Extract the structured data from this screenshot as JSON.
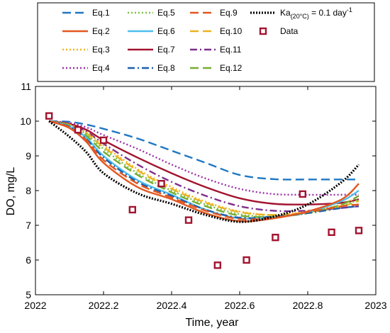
{
  "chart_data": {
    "type": "line",
    "xlabel": "Time, year",
    "ylabel": "DO, mg/L",
    "xlim": [
      2022,
      2023
    ],
    "ylim": [
      5,
      11
    ],
    "xticks": [
      2022,
      2022.2,
      2022.4,
      2022.6,
      2022.8,
      2023
    ],
    "xtick_labels": [
      "2022",
      "2022.2",
      "2022.4",
      "2022.6",
      "2022.8",
      "2023"
    ],
    "yticks": [
      5,
      6,
      7,
      8,
      9,
      10,
      11
    ],
    "ytick_labels": [
      "5",
      "6",
      "7",
      "8",
      "9",
      "10",
      "11"
    ],
    "grid": false,
    "legend_position": "top",
    "series": [
      {
        "name": "Eq.1",
        "color": "#1f77c4",
        "dash": "long-dash",
        "x": [
          2022.04,
          2022.1,
          2022.15,
          2022.2,
          2022.3,
          2022.4,
          2022.5,
          2022.6,
          2022.7,
          2022.8,
          2022.9,
          2022.95
        ],
        "y": [
          10.0,
          9.98,
          9.9,
          9.78,
          9.5,
          9.15,
          8.8,
          8.45,
          8.33,
          8.32,
          8.32,
          8.32
        ]
      },
      {
        "name": "Eq.2",
        "color": "#e2571f",
        "dash": "solid",
        "x": [
          2022.04,
          2022.1,
          2022.15,
          2022.2,
          2022.3,
          2022.4,
          2022.5,
          2022.6,
          2022.7,
          2022.8,
          2022.9,
          2022.95
        ],
        "y": [
          10.0,
          9.8,
          9.4,
          8.8,
          8.1,
          7.75,
          7.35,
          7.12,
          7.2,
          7.4,
          7.75,
          8.2
        ]
      },
      {
        "name": "Eq.3",
        "color": "#f2b51f",
        "dash": "dotted",
        "x": [
          2022.04,
          2022.1,
          2022.15,
          2022.2,
          2022.3,
          2022.4,
          2022.5,
          2022.6,
          2022.7,
          2022.8,
          2022.9,
          2022.95
        ],
        "y": [
          10.0,
          9.9,
          9.68,
          9.3,
          8.62,
          8.1,
          7.68,
          7.4,
          7.3,
          7.4,
          7.6,
          7.85
        ]
      },
      {
        "name": "Eq.4",
        "color": "#9b2fa5",
        "dash": "dotted",
        "x": [
          2022.04,
          2022.1,
          2022.15,
          2022.2,
          2022.3,
          2022.4,
          2022.5,
          2022.6,
          2022.7,
          2022.8,
          2022.9,
          2022.95
        ],
        "y": [
          10.0,
          9.95,
          9.82,
          9.6,
          9.2,
          8.75,
          8.35,
          8.05,
          7.9,
          7.88,
          7.88,
          7.88
        ]
      },
      {
        "name": "Eq.5",
        "color": "#7cc242",
        "dash": "dotted",
        "x": [
          2022.04,
          2022.1,
          2022.15,
          2022.2,
          2022.3,
          2022.4,
          2022.5,
          2022.6,
          2022.7,
          2022.8,
          2022.9,
          2022.95
        ],
        "y": [
          10.0,
          9.88,
          9.62,
          9.2,
          8.5,
          8.0,
          7.6,
          7.32,
          7.25,
          7.35,
          7.55,
          7.75
        ]
      },
      {
        "name": "Eq.6",
        "color": "#4dbeee",
        "dash": "solid",
        "x": [
          2022.04,
          2022.1,
          2022.15,
          2022.2,
          2022.3,
          2022.4,
          2022.5,
          2022.6,
          2022.7,
          2022.8,
          2022.9,
          2022.95
        ],
        "y": [
          10.0,
          9.85,
          9.52,
          9.0,
          8.3,
          7.88,
          7.45,
          7.2,
          7.22,
          7.38,
          7.7,
          8.0
        ]
      },
      {
        "name": "Eq.7",
        "color": "#a2142f",
        "dash": "solid",
        "x": [
          2022.04,
          2022.1,
          2022.15,
          2022.2,
          2022.3,
          2022.4,
          2022.5,
          2022.6,
          2022.7,
          2022.8,
          2022.9,
          2022.95
        ],
        "y": [
          10.0,
          9.92,
          9.75,
          9.45,
          8.95,
          8.5,
          8.1,
          7.78,
          7.62,
          7.6,
          7.65,
          7.75
        ]
      },
      {
        "name": "Eq.8",
        "color": "#1f5faa",
        "dash": "dash-dot",
        "x": [
          2022.04,
          2022.1,
          2022.15,
          2022.2,
          2022.3,
          2022.4,
          2022.5,
          2022.6,
          2022.7,
          2022.8,
          2022.9,
          2022.95
        ],
        "y": [
          10.0,
          9.84,
          9.48,
          8.95,
          8.25,
          7.85,
          7.45,
          7.22,
          7.25,
          7.35,
          7.5,
          7.55
        ]
      },
      {
        "name": "Eq.9",
        "color": "#e2571f",
        "dash": "long-dash",
        "x": [
          2022.04,
          2022.1,
          2022.15,
          2022.2,
          2022.3,
          2022.4,
          2022.5,
          2022.6,
          2022.7,
          2022.8,
          2022.9,
          2022.95
        ],
        "y": [
          10.0,
          9.82,
          9.45,
          8.88,
          8.2,
          7.8,
          7.42,
          7.18,
          7.22,
          7.38,
          7.55,
          7.6
        ]
      },
      {
        "name": "Eq.10",
        "color": "#edb120",
        "dash": "long-dash",
        "x": [
          2022.04,
          2022.1,
          2022.15,
          2022.2,
          2022.3,
          2022.4,
          2022.5,
          2022.6,
          2022.7,
          2022.8,
          2022.9,
          2022.95
        ],
        "y": [
          10.0,
          9.89,
          9.65,
          9.25,
          8.58,
          8.05,
          7.65,
          7.38,
          7.3,
          7.38,
          7.55,
          7.7
        ]
      },
      {
        "name": "Eq.11",
        "color": "#7e2f8e",
        "dash": "dash-dot",
        "x": [
          2022.04,
          2022.1,
          2022.15,
          2022.2,
          2022.3,
          2022.4,
          2022.5,
          2022.6,
          2022.7,
          2022.8,
          2022.9,
          2022.95
        ],
        "y": [
          10.0,
          9.9,
          9.7,
          9.35,
          8.75,
          8.25,
          7.85,
          7.55,
          7.42,
          7.42,
          7.5,
          7.55
        ]
      },
      {
        "name": "Eq.12",
        "color": "#77ac30",
        "dash": "long-dash",
        "x": [
          2022.04,
          2022.1,
          2022.15,
          2022.2,
          2022.3,
          2022.4,
          2022.5,
          2022.6,
          2022.7,
          2022.8,
          2022.9,
          2022.95
        ],
        "y": [
          10.0,
          9.87,
          9.58,
          9.12,
          8.45,
          7.95,
          7.55,
          7.28,
          7.25,
          7.35,
          7.6,
          7.85
        ]
      },
      {
        "name": "Ka",
        "color": "#000000",
        "dash": "dense-dot",
        "x": [
          2022.04,
          2022.1,
          2022.15,
          2022.2,
          2022.3,
          2022.4,
          2022.5,
          2022.6,
          2022.7,
          2022.8,
          2022.9,
          2022.95
        ],
        "y": [
          10.0,
          9.55,
          9.1,
          8.5,
          7.92,
          7.62,
          7.3,
          7.1,
          7.25,
          7.6,
          8.25,
          8.75
        ]
      }
    ],
    "legend": {
      "columns": [
        [
          "Eq.1",
          "Eq.2",
          "Eq.3",
          "Eq.4"
        ],
        [
          "Eq.5",
          "Eq.6",
          "Eq.7",
          "Eq.8"
        ],
        [
          "Eq.9",
          "Eq.10",
          "Eq.11",
          "Eq.12"
        ],
        [
          "Ka",
          "Data"
        ]
      ],
      "ka_label": {
        "main": "Ka",
        "sub": "(20°C)",
        "eq": " = 0.1 day",
        "sup": "-1"
      }
    },
    "data_points": {
      "name": "Data",
      "color": "#a2142f",
      "marker": "open-square",
      "x": [
        2022.04,
        2022.125,
        2022.2,
        2022.285,
        2022.37,
        2022.45,
        2022.535,
        2022.62,
        2022.705,
        2022.785,
        2022.87,
        2022.95
      ],
      "y": [
        10.15,
        9.75,
        9.45,
        7.45,
        8.2,
        7.15,
        5.85,
        6.0,
        6.65,
        7.9,
        6.8,
        6.85
      ]
    }
  }
}
